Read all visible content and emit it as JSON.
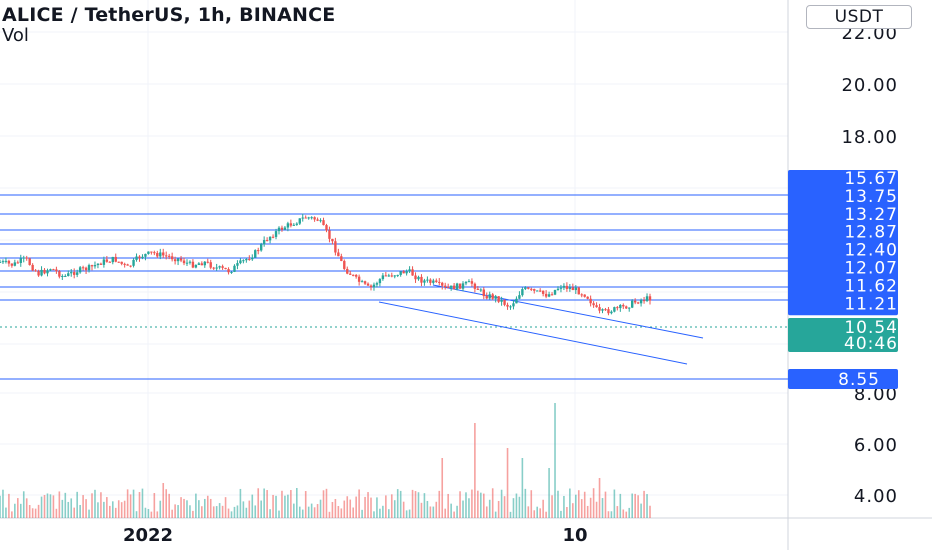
{
  "header": {
    "title": "ALICE / TetherUS, 1h, BINANCE",
    "volume_label": "Vol",
    "currency": "USDT"
  },
  "colors": {
    "up": "#26a69a",
    "down": "#ef5350",
    "line": "#2962ff",
    "tag_blue": "#2962ff",
    "tag_price": "#26a69a"
  },
  "chart_data": {
    "type": "candlestick",
    "y_axis": {
      "ticks": [
        22.0,
        20.0,
        18.0,
        8.0,
        6.0,
        4.0
      ]
    },
    "x_axis": {
      "ticks": [
        "2022",
        "10"
      ]
    },
    "horizontal_levels": [
      15.67,
      13.75,
      13.27,
      12.87,
      12.4,
      12.07,
      11.62,
      11.21,
      8.55
    ],
    "level_tags": [
      "15.67",
      "13.75",
      "13.27",
      "12.87",
      "12.40",
      "12.07",
      "11.62",
      "11.21",
      "8.55"
    ],
    "current_price": {
      "price": "10.54",
      "countdown": "40:46"
    },
    "price_path": [
      12.1,
      12.0,
      12.2,
      11.7,
      11.9,
      11.6,
      11.8,
      11.9,
      12.1,
      12.2,
      11.9,
      12.3,
      12.4,
      12.3,
      12.2,
      12.0,
      12.1,
      11.9,
      11.8,
      12.1,
      12.4,
      12.9,
      13.2,
      13.4,
      13.6,
      13.5,
      12.8,
      11.9,
      11.5,
      11.2,
      11.6,
      11.7,
      11.8,
      11.5,
      11.4,
      11.2,
      11.3,
      11.4,
      11.0,
      10.9,
      10.6,
      11.2,
      11.1,
      11.0,
      11.3,
      11.2,
      11.0,
      10.4,
      10.5,
      10.6,
      10.8,
      10.9
    ]
  }
}
